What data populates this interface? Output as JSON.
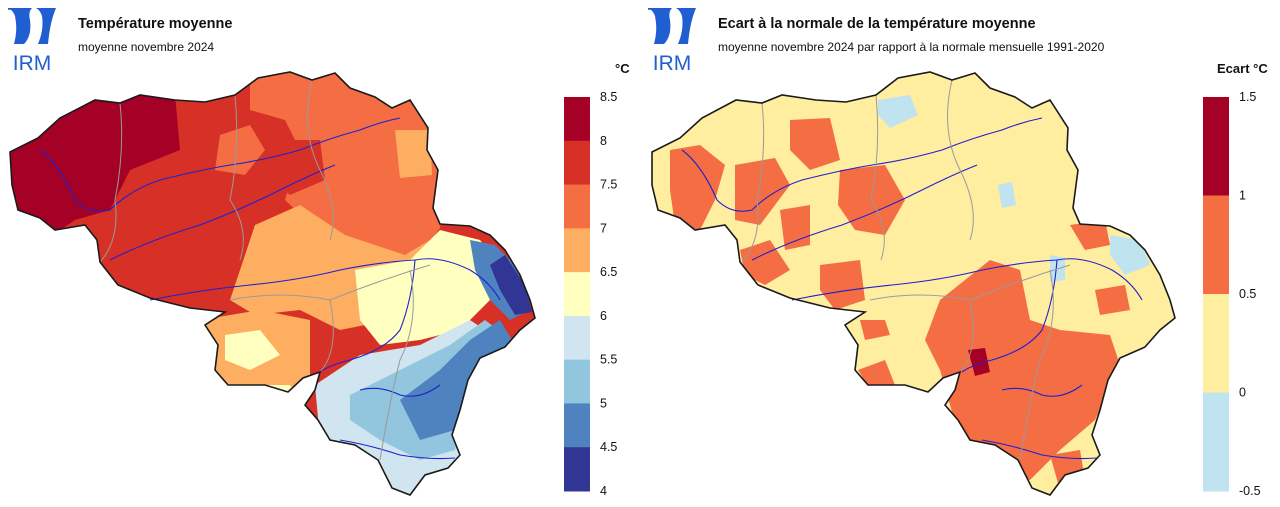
{
  "panels": [
    {
      "logo_text": "IRM",
      "title": "Température moyenne",
      "subtitle": "moyenne novembre 2024",
      "unit": "°C",
      "legend": {
        "ticks": [
          "8.5",
          "8",
          "7.5",
          "7",
          "6.5",
          "6",
          "5.5",
          "5",
          "4.5",
          "4"
        ],
        "colors": [
          "#a50026",
          "#d73027",
          "#f46d43",
          "#fdae61",
          "#ffffbf",
          "#d1e5f0",
          "#92c5de",
          "#4f83bf",
          "#313695"
        ]
      },
      "map": {
        "colors_by_zone": {
          "northwest": "#a50026",
          "central": "#d73027",
          "east_north": "#f46d43",
          "south_center": "#fdae61",
          "ardennes_edge": "#ffffbf",
          "ardennes": "#92c5de",
          "high_fens": "#313695"
        }
      }
    },
    {
      "logo_text": "IRM",
      "title": "Ecart à la normale de la température moyenne",
      "subtitle": "moyenne novembre 2024 par rapport à la normale mensuelle 1991-2020",
      "unit": "Ecart °C",
      "legend": {
        "ticks": [
          "1.5",
          "1",
          "0.5",
          "0",
          "-0.5"
        ],
        "colors": [
          "#a50026",
          "#f46d43",
          "#ffeda0",
          "#bfe3ef"
        ]
      },
      "map": {
        "colors_by_zone": {
          "background": "#ffeda0",
          "warm_patches": "#f46d43",
          "hot_spot": "#a50026",
          "cool_patches": "#bfe3ef"
        }
      }
    }
  ]
}
